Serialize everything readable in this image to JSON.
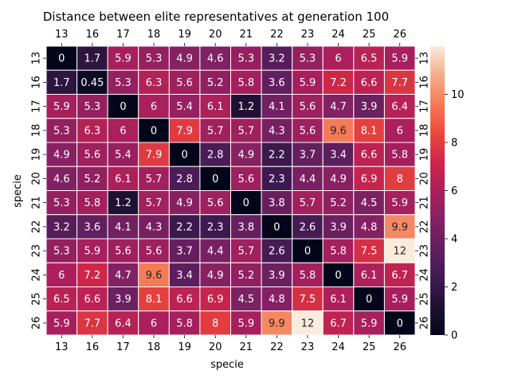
{
  "chart_data": {
    "type": "heatmap",
    "title": "Distance between elite representatives at generation 100",
    "xlabel": "specie",
    "ylabel": "specie",
    "x_categories": [
      "13",
      "16",
      "17",
      "18",
      "19",
      "20",
      "21",
      "22",
      "23",
      "24",
      "25",
      "26"
    ],
    "y_categories": [
      "13",
      "16",
      "17",
      "18",
      "19",
      "20",
      "21",
      "22",
      "23",
      "24",
      "25",
      "26"
    ],
    "values": [
      [
        0,
        1.7,
        5.9,
        5.3,
        4.9,
        4.6,
        5.3,
        3.2,
        5.3,
        6,
        6.5,
        5.9
      ],
      [
        1.7,
        0.45,
        5.3,
        6.3,
        5.6,
        5.2,
        5.8,
        3.6,
        5.9,
        7.2,
        6.6,
        7.7
      ],
      [
        5.9,
        5.3,
        0,
        6,
        5.4,
        6.1,
        1.2,
        4.1,
        5.6,
        4.7,
        3.9,
        6.4
      ],
      [
        5.3,
        6.3,
        6,
        0,
        7.9,
        5.7,
        5.7,
        4.3,
        5.6,
        9.6,
        8.1,
        6
      ],
      [
        4.9,
        5.6,
        5.4,
        7.9,
        0,
        2.8,
        4.9,
        2.2,
        3.7,
        3.4,
        6.6,
        5.8
      ],
      [
        4.6,
        5.2,
        6.1,
        5.7,
        2.8,
        0,
        5.6,
        2.3,
        4.4,
        4.9,
        6.9,
        8
      ],
      [
        5.3,
        5.8,
        1.2,
        5.7,
        4.9,
        5.6,
        0,
        3.8,
        5.7,
        5.2,
        4.5,
        5.9
      ],
      [
        3.2,
        3.6,
        4.1,
        4.3,
        2.2,
        2.3,
        3.8,
        0,
        2.6,
        3.9,
        4.8,
        9.9
      ],
      [
        5.3,
        5.9,
        5.6,
        5.6,
        3.7,
        4.4,
        5.7,
        2.6,
        0,
        5.8,
        7.5,
        12
      ],
      [
        6,
        7.2,
        4.7,
        9.6,
        3.4,
        4.9,
        5.2,
        3.9,
        5.8,
        0,
        6.1,
        6.7
      ],
      [
        6.5,
        6.6,
        3.9,
        8.1,
        6.6,
        6.9,
        4.5,
        4.8,
        7.5,
        6.1,
        0,
        5.9
      ],
      [
        5.9,
        7.7,
        6.4,
        6,
        5.8,
        8,
        5.9,
        9.9,
        12,
        6.7,
        5.9,
        0
      ]
    ],
    "colorbar": {
      "range": [
        0,
        12
      ],
      "ticks": [
        "0",
        "2",
        "4",
        "6",
        "8",
        "10"
      ]
    },
    "colormap": "rocket",
    "grid": false,
    "annotate_cells": true,
    "cell_border_color": "#ffffff"
  }
}
